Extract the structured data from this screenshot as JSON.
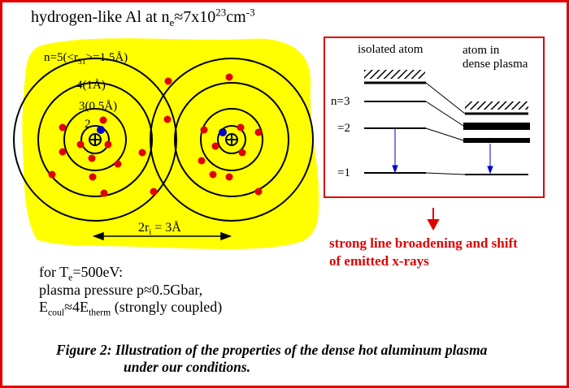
{
  "title": {
    "prefix": "hydrogen-like Al at n",
    "sub": "e",
    "mid": "≈7x10",
    "sup": "23",
    "unit": "cm",
    "unit_sup": "-3"
  },
  "orbit_labels": {
    "n5_pre": "n=5(<r",
    "n5_sub": "51",
    "n5_post": ">=1.5Å)",
    "n4": "4(1Å)",
    "n3": "3(0.5Å)",
    "n2": "2"
  },
  "ion_sphere": {
    "pre": "2r",
    "sub": "i",
    "post": " = 3Å"
  },
  "conditions": {
    "line1_pre": "for T",
    "line1_sub": "e",
    "line1_post": "=500eV:",
    "line2": "plasma pressure p≈0.5Gbar,",
    "line3_a": "E",
    "line3_sub1": "coul",
    "line3_b": "≈4E",
    "line3_sub2": "therm",
    "line3_c": " (strongly coupled)"
  },
  "energy_box": {
    "isolated_label": "isolated atom",
    "dense_label_1": "atom in",
    "dense_label_2": "dense plasma",
    "level_n3": "n=3",
    "level_2": "=2",
    "level_1": "=1"
  },
  "conclusion": {
    "line1": "strong line broadening and shift",
    "line2": "of emitted x-rays"
  },
  "caption": {
    "line1": "Figure 2: Illustration of the properties of the dense hot aluminum plasma",
    "line2": "under our conditions."
  },
  "colors": {
    "plasma": "#ffff00",
    "particle": "#e00000",
    "electron": "#0000cc",
    "frame": "#e00000",
    "arrow_blue": "#0000cc"
  }
}
